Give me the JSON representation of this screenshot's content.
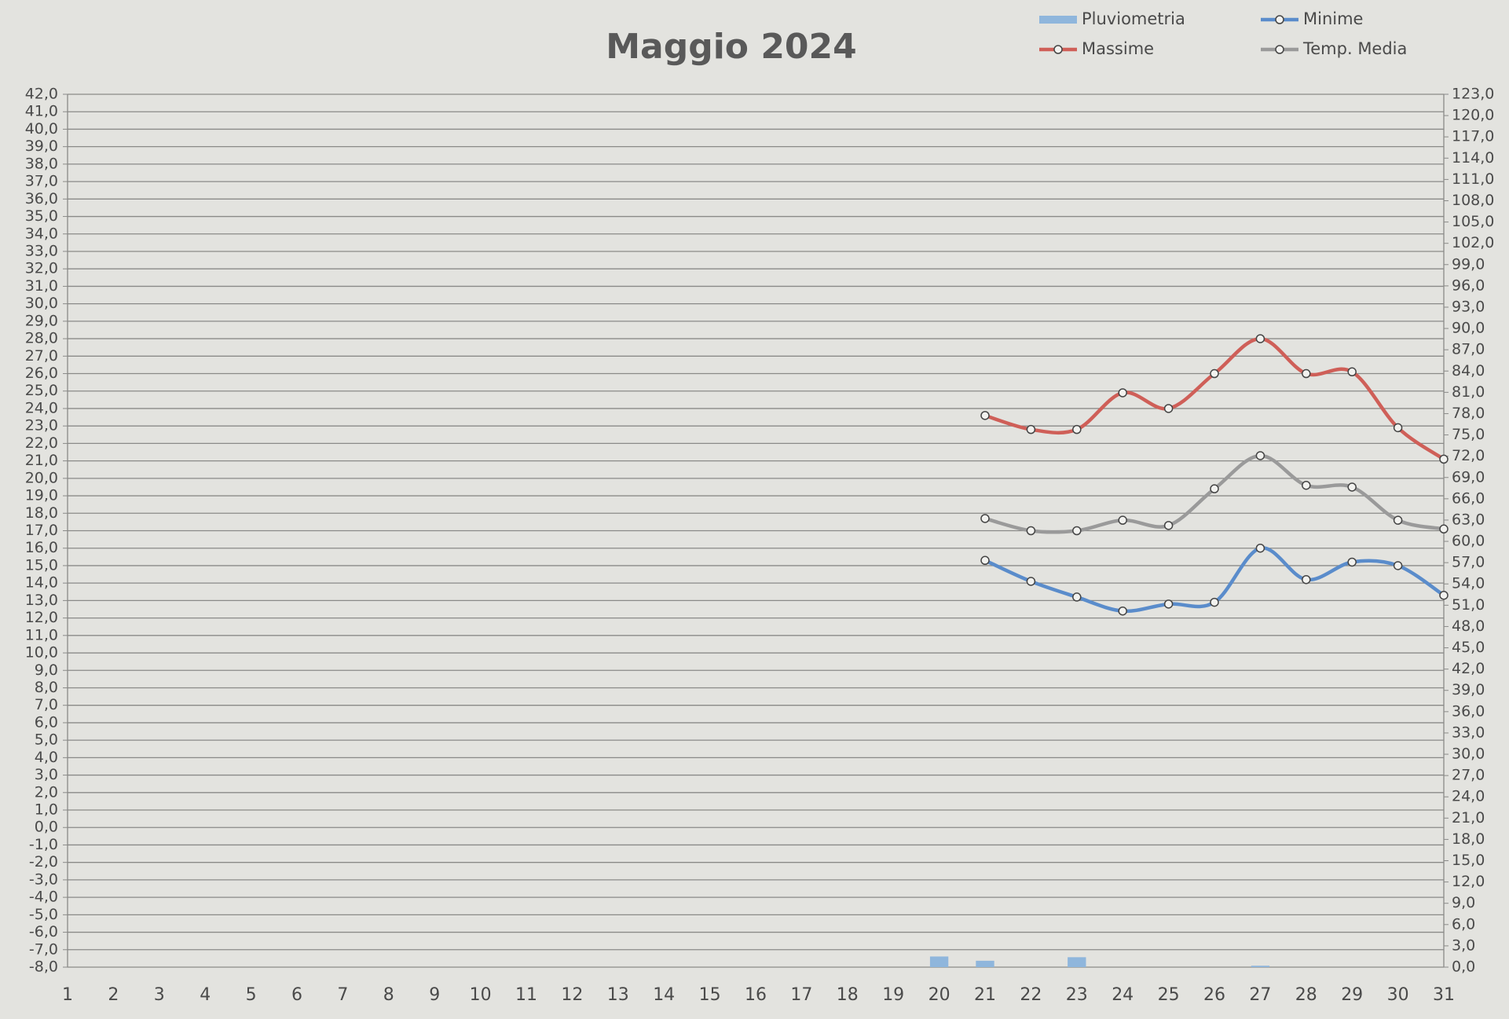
{
  "chart_data": {
    "type": "line",
    "title": "Maggio 2024",
    "categories": [
      "1",
      "2",
      "3",
      "4",
      "5",
      "6",
      "7",
      "8",
      "9",
      "10",
      "11",
      "12",
      "13",
      "14",
      "15",
      "16",
      "17",
      "18",
      "19",
      "20",
      "21",
      "22",
      "23",
      "24",
      "25",
      "26",
      "27",
      "28",
      "29",
      "30",
      "31"
    ],
    "series": [
      {
        "name": "Pluviometria",
        "type": "bar",
        "axis": "y2",
        "color": "#8fb6dc",
        "values": [
          null,
          null,
          null,
          null,
          null,
          null,
          null,
          null,
          null,
          null,
          null,
          null,
          null,
          null,
          null,
          null,
          null,
          null,
          null,
          1.5,
          0.9,
          null,
          1.4,
          null,
          null,
          null,
          0.2,
          null,
          null,
          null,
          null
        ]
      },
      {
        "name": "Minime",
        "type": "line",
        "color": "#5a8ccb",
        "values": [
          null,
          null,
          null,
          null,
          null,
          null,
          null,
          null,
          null,
          null,
          null,
          null,
          null,
          null,
          null,
          null,
          null,
          null,
          null,
          null,
          15.3,
          14.1,
          13.2,
          12.4,
          12.8,
          12.9,
          16.0,
          14.2,
          15.2,
          15.0,
          13.3
        ]
      },
      {
        "name": "Massime",
        "type": "line",
        "color": "#cf5f58",
        "values": [
          null,
          null,
          null,
          null,
          null,
          null,
          null,
          null,
          null,
          null,
          null,
          null,
          null,
          null,
          null,
          null,
          null,
          null,
          null,
          null,
          23.6,
          22.8,
          22.8,
          24.9,
          24.0,
          26.0,
          28.0,
          26.0,
          26.1,
          22.9,
          21.1
        ]
      },
      {
        "name": "Temp. Media",
        "type": "line",
        "color": "#9a9a9a",
        "values": [
          null,
          null,
          null,
          null,
          null,
          null,
          null,
          null,
          null,
          null,
          null,
          null,
          null,
          null,
          null,
          null,
          null,
          null,
          null,
          null,
          17.7,
          17.0,
          17.0,
          17.6,
          17.3,
          19.4,
          21.3,
          19.6,
          19.5,
          17.6,
          17.1
        ]
      }
    ],
    "ylim": [
      -8,
      42
    ],
    "yticks": [
      {
        "value": -8,
        "label": "-8,0"
      },
      {
        "value": -7,
        "label": "-7,0"
      },
      {
        "value": -6,
        "label": "-6,0"
      },
      {
        "value": -5,
        "label": "-5,0"
      },
      {
        "value": -4,
        "label": "-4,0"
      },
      {
        "value": -3,
        "label": "-3,0"
      },
      {
        "value": -2,
        "label": "-2,0"
      },
      {
        "value": -1,
        "label": "-1,0"
      },
      {
        "value": 0,
        "label": "0,0"
      },
      {
        "value": 1,
        "label": "1,0"
      },
      {
        "value": 2,
        "label": "2,0"
      },
      {
        "value": 3,
        "label": "3,0"
      },
      {
        "value": 4,
        "label": "4,0"
      },
      {
        "value": 5,
        "label": "5,0"
      },
      {
        "value": 6,
        "label": "6,0"
      },
      {
        "value": 7,
        "label": "7,0"
      },
      {
        "value": 8,
        "label": "8,0"
      },
      {
        "value": 9,
        "label": "9,0"
      },
      {
        "value": 10,
        "label": "10,0"
      },
      {
        "value": 11,
        "label": "11,0"
      },
      {
        "value": 12,
        "label": "12,0"
      },
      {
        "value": 13,
        "label": "13,0"
      },
      {
        "value": 14,
        "label": "14,0"
      },
      {
        "value": 15,
        "label": "15,0"
      },
      {
        "value": 16,
        "label": "16,0"
      },
      {
        "value": 17,
        "label": "17,0"
      },
      {
        "value": 18,
        "label": "18,0"
      },
      {
        "value": 19,
        "label": "19,0"
      },
      {
        "value": 20,
        "label": "20,0"
      },
      {
        "value": 21,
        "label": "21,0"
      },
      {
        "value": 22,
        "label": "22,0"
      },
      {
        "value": 23,
        "label": "23,0"
      },
      {
        "value": 24,
        "label": "24,0"
      },
      {
        "value": 25,
        "label": "25,0"
      },
      {
        "value": 26,
        "label": "26,0"
      },
      {
        "value": 27,
        "label": "27,0"
      },
      {
        "value": 28,
        "label": "28,0"
      },
      {
        "value": 29,
        "label": "29,0"
      },
      {
        "value": 30,
        "label": "30,0"
      },
      {
        "value": 31,
        "label": "31,0"
      },
      {
        "value": 32,
        "label": "32,0"
      },
      {
        "value": 33,
        "label": "33,0"
      },
      {
        "value": 34,
        "label": "34,0"
      },
      {
        "value": 35,
        "label": "35,0"
      },
      {
        "value": 36,
        "label": "36,0"
      },
      {
        "value": 37,
        "label": "37,0"
      },
      {
        "value": 38,
        "label": "38,0"
      },
      {
        "value": 39,
        "label": "39,0"
      },
      {
        "value": 40,
        "label": "40,0"
      },
      {
        "value": 41,
        "label": "41,0"
      },
      {
        "value": 42,
        "label": "42,0"
      }
    ],
    "y2lim": [
      0,
      123
    ],
    "y2ticks": [
      {
        "value": 0,
        "label": "0,0"
      },
      {
        "value": 3,
        "label": "3,0"
      },
      {
        "value": 6,
        "label": "6,0"
      },
      {
        "value": 9,
        "label": "9,0"
      },
      {
        "value": 12,
        "label": "12,0"
      },
      {
        "value": 15,
        "label": "15,0"
      },
      {
        "value": 18,
        "label": "18,0"
      },
      {
        "value": 21,
        "label": "21,0"
      },
      {
        "value": 24,
        "label": "24,0"
      },
      {
        "value": 27,
        "label": "27,0"
      },
      {
        "value": 30,
        "label": "30,0"
      },
      {
        "value": 33,
        "label": "33,0"
      },
      {
        "value": 36,
        "label": "36,0"
      },
      {
        "value": 39,
        "label": "39,0"
      },
      {
        "value": 42,
        "label": "42,0"
      },
      {
        "value": 45,
        "label": "45,0"
      },
      {
        "value": 48,
        "label": "48,0"
      },
      {
        "value": 51,
        "label": "51,0"
      },
      {
        "value": 54,
        "label": "54,0"
      },
      {
        "value": 57,
        "label": "57,0"
      },
      {
        "value": 60,
        "label": "60,0"
      },
      {
        "value": 63,
        "label": "63,0"
      },
      {
        "value": 66,
        "label": "66,0"
      },
      {
        "value": 69,
        "label": "69,0"
      },
      {
        "value": 72,
        "label": "72,0"
      },
      {
        "value": 75,
        "label": "75,0"
      },
      {
        "value": 78,
        "label": "78,0"
      },
      {
        "value": 81,
        "label": "81,0"
      },
      {
        "value": 84,
        "label": "84,0"
      },
      {
        "value": 87,
        "label": "87,0"
      },
      {
        "value": 90,
        "label": "90,0"
      },
      {
        "value": 93,
        "label": "93,0"
      },
      {
        "value": 96,
        "label": "96,0"
      },
      {
        "value": 99,
        "label": "99,0"
      },
      {
        "value": 102,
        "label": "102,0"
      },
      {
        "value": 105,
        "label": "105,0"
      },
      {
        "value": 108,
        "label": "108,0"
      },
      {
        "value": 111,
        "label": "111,0"
      },
      {
        "value": 114,
        "label": "114,0"
      },
      {
        "value": 117,
        "label": "117,0"
      },
      {
        "value": 120,
        "label": "120,0"
      },
      {
        "value": 123,
        "label": "123,0"
      }
    ],
    "grid": true,
    "smooth": true,
    "markers": true
  }
}
